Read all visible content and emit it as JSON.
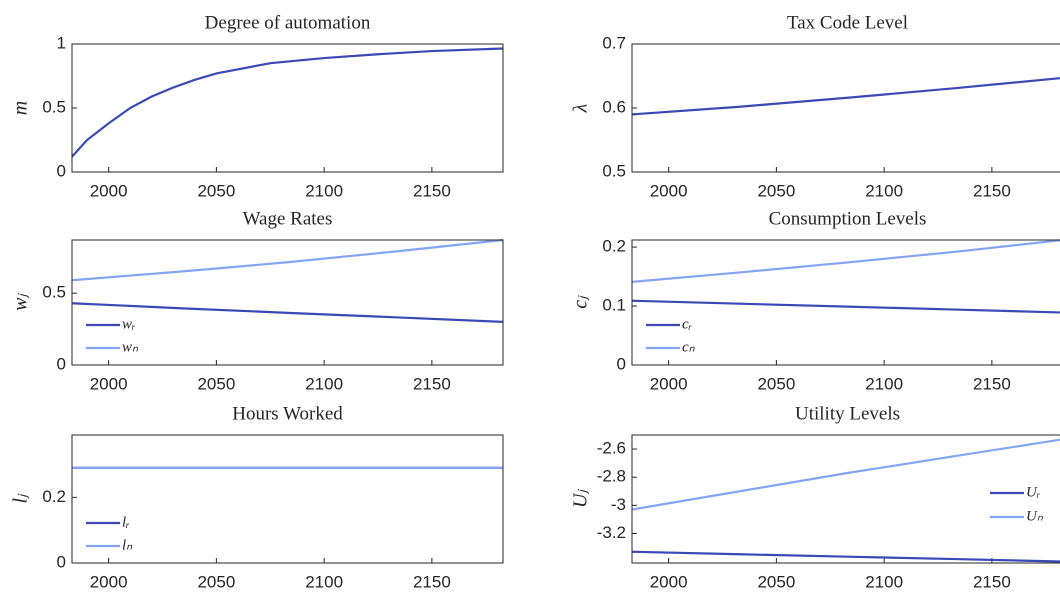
{
  "chart_data": [
    {
      "type": "line",
      "title": "Degree of automation",
      "ylabel": "m",
      "x": [
        1983,
        1990,
        2000,
        2010,
        2020,
        2030,
        2040,
        2050,
        2075,
        2100,
        2125,
        2150,
        2183
      ],
      "series": [
        {
          "name": null,
          "color": "#3a49b5",
          "values": [
            0.12,
            0.25,
            0.38,
            0.5,
            0.59,
            0.66,
            0.72,
            0.77,
            0.85,
            0.89,
            0.92,
            0.945,
            0.965
          ]
        }
      ],
      "xlim": [
        1983,
        2183
      ],
      "xticks": [
        2000,
        2050,
        2100,
        2150
      ],
      "ylim": [
        0,
        1
      ],
      "yticks": [
        0,
        0.5,
        1
      ],
      "grid": false
    },
    {
      "type": "line",
      "title": "Tax Code Level",
      "ylabel": "λ",
      "x": [
        1983,
        2033,
        2083,
        2133,
        2183
      ],
      "series": [
        {
          "name": null,
          "color": "#3a49b5",
          "values": [
            0.59,
            0.602,
            0.616,
            0.631,
            0.647
          ]
        }
      ],
      "xlim": [
        1983,
        2183
      ],
      "xticks": [
        2000,
        2050,
        2100,
        2150
      ],
      "ylim": [
        0.5,
        0.7
      ],
      "yticks": [
        0.5,
        0.6,
        0.7
      ],
      "grid": false
    },
    {
      "type": "line",
      "title": "Wage Rates",
      "ylabel": "wⱼ",
      "x": [
        1983,
        2033,
        2083,
        2133,
        2183
      ],
      "series": [
        {
          "name": "wᵣ",
          "color": "#3a49b5",
          "values": [
            0.43,
            0.395,
            0.363,
            0.332,
            0.3
          ]
        },
        {
          "name": "wₙ",
          "color": "#82a6f5",
          "values": [
            0.59,
            0.65,
            0.715,
            0.79,
            0.87
          ]
        }
      ],
      "xlim": [
        1983,
        2183
      ],
      "xticks": [
        2000,
        2050,
        2100,
        2150
      ],
      "ylim": [
        0,
        0.87
      ],
      "yticks": [
        0,
        0.5
      ],
      "legend": "lower left",
      "grid": false
    },
    {
      "type": "line",
      "title": "Consumption Levels",
      "ylabel": "cⱼ",
      "x": [
        1983,
        2033,
        2083,
        2133,
        2183
      ],
      "series": [
        {
          "name": "cᵣ",
          "color": "#3a49b5",
          "values": [
            0.109,
            0.104,
            0.099,
            0.094,
            0.089
          ]
        },
        {
          "name": "cₙ",
          "color": "#82a6f5",
          "values": [
            0.141,
            0.157,
            0.174,
            0.192,
            0.212
          ]
        }
      ],
      "xlim": [
        1983,
        2183
      ],
      "xticks": [
        2000,
        2050,
        2100,
        2150
      ],
      "ylim": [
        0,
        0.212
      ],
      "yticks": [
        0,
        0.1,
        0.2
      ],
      "legend": "lower left",
      "grid": false
    },
    {
      "type": "line",
      "title": "Hours Worked",
      "ylabel": "lⱼ",
      "x": [
        1983,
        2183
      ],
      "series": [
        {
          "name": "lᵣ",
          "color": "#3a49b5",
          "values": [
            0.29,
            0.29
          ]
        },
        {
          "name": "lₙ",
          "color": "#82a6f5",
          "values": [
            0.29,
            0.29
          ]
        }
      ],
      "xlim": [
        1983,
        2183
      ],
      "xticks": [
        2000,
        2050,
        2100,
        2150
      ],
      "ylim": [
        0,
        0.39
      ],
      "yticks": [
        0,
        0.2
      ],
      "legend": "lower left",
      "grid": false
    },
    {
      "type": "line",
      "title": "Utility Levels",
      "ylabel": "Uⱼ",
      "x": [
        1983,
        2033,
        2083,
        2133,
        2183
      ],
      "series": [
        {
          "name": "Uᵣ",
          "color": "#3a49b5",
          "values": [
            -3.33,
            -3.348,
            -3.365,
            -3.382,
            -3.4
          ]
        },
        {
          "name": "Uₙ",
          "color": "#82a6f5",
          "values": [
            -3.03,
            -2.9,
            -2.77,
            -2.65,
            -2.53
          ]
        }
      ],
      "xlim": [
        1983,
        2183
      ],
      "xticks": [
        2000,
        2050,
        2100,
        2150
      ],
      "ylim": [
        -3.41,
        -2.5
      ],
      "yticks": [
        -3.2,
        -3,
        -2.8,
        -2.6
      ],
      "legend": "right",
      "grid": false
    }
  ]
}
